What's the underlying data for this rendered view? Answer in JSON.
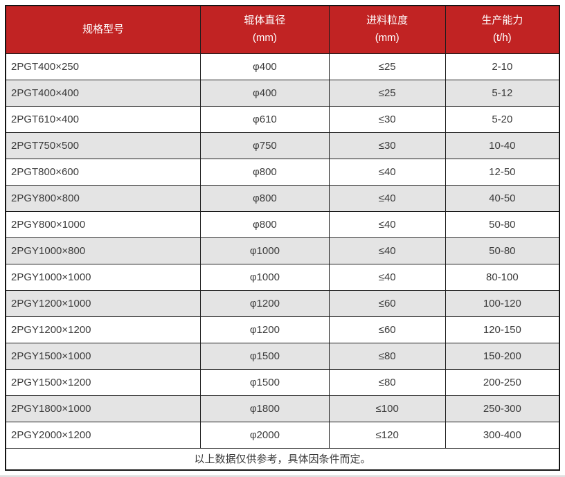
{
  "table": {
    "headers": [
      {
        "title": "规格型号",
        "unit": ""
      },
      {
        "title": "辊体直径",
        "unit": "(mm)"
      },
      {
        "title": "进料粒度",
        "unit": "(mm)"
      },
      {
        "title": "生产能力",
        "unit": "(t/h)"
      }
    ],
    "rows": [
      [
        "2PGT400×250",
        "φ400",
        "≤25",
        "2-10"
      ],
      [
        "2PGT400×400",
        "φ400",
        "≤25",
        "5-12"
      ],
      [
        "2PGT610×400",
        "φ610",
        "≤30",
        "5-20"
      ],
      [
        "2PGT750×500",
        "φ750",
        "≤30",
        "10-40"
      ],
      [
        "2PGT800×600",
        "φ800",
        "≤40",
        "12-50"
      ],
      [
        "2PGY800×800",
        "φ800",
        "≤40",
        "40-50"
      ],
      [
        "2PGY800×1000",
        "φ800",
        "≤40",
        "50-80"
      ],
      [
        "2PGY1000×800",
        "φ1000",
        "≤40",
        "50-80"
      ],
      [
        "2PGY1000×1000",
        "φ1000",
        "≤40",
        "80-100"
      ],
      [
        "2PGY1200×1000",
        "φ1200",
        "≤60",
        "100-120"
      ],
      [
        "2PGY1200×1200",
        "φ1200",
        "≤60",
        "120-150"
      ],
      [
        "2PGY1500×1000",
        "φ1500",
        "≤80",
        "150-200"
      ],
      [
        "2PGY1500×1200",
        "φ1500",
        "≤80",
        "200-250"
      ],
      [
        "2PGY1800×1000",
        "φ1800",
        "≤100",
        "250-300"
      ],
      [
        "2PGY2000×1200",
        "φ2000",
        "≤120",
        "300-400"
      ]
    ],
    "footer_note": "以上数据仅供参考，具体因条件而定。"
  },
  "colors": {
    "header_bg": "#c12323",
    "header_text": "#ffffff",
    "row_alt_bg": "#e4e4e4",
    "border": "#1c1c1c",
    "body_text": "#3b3b3b"
  }
}
